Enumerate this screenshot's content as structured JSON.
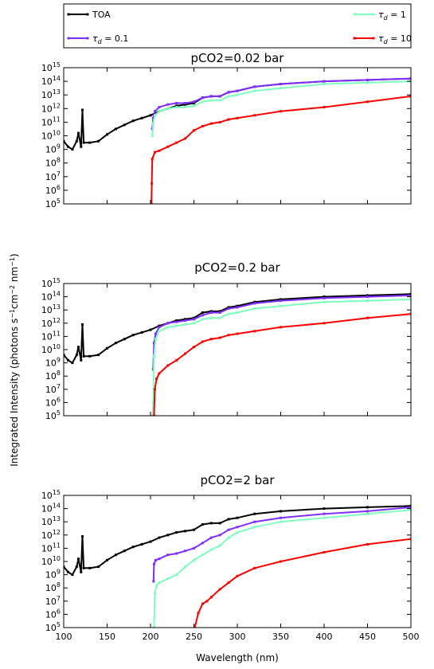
{
  "chart_data": {
    "type": "line",
    "xlabel": "Wavelength (nm)",
    "ylabel": "Integrated Intensity (photons s$^{-1}$cm$^{-2}$ nm$^{-1}$)",
    "ylabel_parts": {
      "main": "Integrated Intensity (photons s",
      "sup1": "−1",
      "mid": "cm",
      "sup2": "−2",
      "end1": " nm",
      "sup3": "−1",
      "end2": ")"
    },
    "xlim": [
      100,
      500
    ],
    "ylim_log10": [
      5,
      15
    ],
    "y_scale": "log",
    "xticks": [
      "100",
      "150",
      "200",
      "250",
      "300",
      "350",
      "400",
      "450",
      "500"
    ],
    "yticks_exponents": [
      "5",
      "6",
      "7",
      "8",
      "9",
      "10",
      "11",
      "12",
      "13",
      "14",
      "15"
    ],
    "legend": {
      "placement": "top, above panels",
      "entries": [
        {
          "label": "TOA",
          "color": "#000000"
        },
        {
          "label_base": "τ",
          "label_sub": "d",
          "label_rest": " = 0.1",
          "color": "#7f2fff"
        },
        {
          "label_base": "τ",
          "label_sub": "d",
          "label_rest": " = 1",
          "color": "#7fffbf"
        },
        {
          "label_base": "τ",
          "label_sub": "d",
          "label_rest": " = 10",
          "color": "#ff0000"
        }
      ]
    },
    "panels": [
      {
        "title": "pCO2=0.02 bar",
        "series": [
          {
            "name": "TOA",
            "color": "#000000",
            "x": [
              100,
              105,
              110,
              115,
              117,
              120,
              121.6,
              123,
              130,
              140,
              150,
              160,
              170,
              180,
              190,
              200,
              210,
              220,
              230,
              240,
              250,
              260,
              270,
              280,
              290,
              300,
              320,
              350,
              400,
              450,
              500
            ],
            "log10y": [
              9.6,
              9.2,
              9.0,
              9.6,
              10.2,
              9.2,
              11.9,
              9.5,
              9.5,
              9.6,
              10.1,
              10.5,
              10.8,
              11.1,
              11.3,
              11.5,
              11.8,
              12.0,
              12.2,
              12.3,
              12.4,
              12.8,
              12.9,
              12.9,
              13.2,
              13.3,
              13.6,
              13.8,
              14.0,
              14.1,
              14.2
            ]
          },
          {
            "name": "τd = 0.1",
            "color": "#7f2fff",
            "x": [
              202,
              203,
              205,
              210,
              220,
              230,
              240,
              250,
              260,
              270,
              280,
              290,
              300,
              320,
              350,
              400,
              450,
              500
            ],
            "log10y": [
              10.5,
              11.3,
              11.8,
              12.1,
              12.3,
              12.4,
              12.4,
              12.5,
              12.8,
              12.9,
              12.9,
              13.2,
              13.3,
              13.6,
              13.8,
              14.0,
              14.1,
              14.2
            ]
          },
          {
            "name": "τd = 1",
            "color": "#7fffbf",
            "x": [
              202,
              203,
              205,
              210,
              220,
              230,
              240,
              250,
              260,
              270,
              280,
              290,
              300,
              320,
              350,
              400,
              450,
              500
            ],
            "log10y": [
              10.0,
              10.9,
              11.5,
              11.8,
              12.0,
              12.1,
              12.1,
              12.2,
              12.5,
              12.6,
              12.6,
              12.9,
              13.0,
              13.3,
              13.5,
              13.8,
              13.9,
              14.0
            ]
          },
          {
            "name": "τd = 10",
            "color": "#ff0000",
            "x": [
              201,
              201.5,
              202,
              205,
              210,
              220,
              230,
              240,
              250,
              260,
              270,
              280,
              290,
              300,
              320,
              350,
              400,
              450,
              500
            ],
            "log10y": [
              5.0,
              6.5,
              8.3,
              8.8,
              8.9,
              9.2,
              9.5,
              9.8,
              10.4,
              10.7,
              10.9,
              11.0,
              11.2,
              11.3,
              11.5,
              11.8,
              12.1,
              12.5,
              12.9
            ]
          }
        ]
      },
      {
        "title": "pCO2=0.2 bar",
        "series": [
          {
            "name": "TOA",
            "color": "#000000",
            "x": [
              100,
              105,
              110,
              115,
              117,
              120,
              121.6,
              123,
              130,
              140,
              150,
              160,
              170,
              180,
              190,
              200,
              210,
              220,
              230,
              240,
              250,
              260,
              270,
              280,
              290,
              300,
              320,
              350,
              400,
              450,
              500
            ],
            "log10y": [
              9.6,
              9.2,
              9.0,
              9.6,
              10.2,
              9.2,
              11.9,
              9.5,
              9.5,
              9.6,
              10.1,
              10.5,
              10.8,
              11.1,
              11.3,
              11.5,
              11.8,
              12.0,
              12.2,
              12.3,
              12.4,
              12.8,
              12.9,
              12.9,
              13.2,
              13.3,
              13.6,
              13.8,
              14.0,
              14.1,
              14.2
            ]
          },
          {
            "name": "τd = 0.1",
            "color": "#7f2fff",
            "x": [
              203,
              204,
              206,
              210,
              220,
              230,
              240,
              250,
              260,
              270,
              280,
              290,
              300,
              320,
              350,
              400,
              450,
              500
            ],
            "log10y": [
              8.5,
              10.5,
              11.2,
              11.7,
              12.0,
              12.1,
              12.2,
              12.3,
              12.6,
              12.8,
              12.8,
              13.1,
              13.2,
              13.5,
              13.7,
              13.9,
              14.0,
              14.1
            ]
          },
          {
            "name": "τd = 1",
            "color": "#7fffbf",
            "x": [
              202.5,
              203,
              204,
              206,
              210,
              220,
              230,
              240,
              250,
              260,
              270,
              280,
              290,
              300,
              320,
              350,
              400,
              450,
              500
            ],
            "log10y": [
              5.0,
              6.0,
              9.5,
              10.8,
              11.4,
              11.7,
              11.8,
              11.9,
              12.0,
              12.3,
              12.4,
              12.4,
              12.7,
              12.8,
              13.1,
              13.3,
              13.6,
              13.7,
              13.8
            ]
          },
          {
            "name": "τd = 10",
            "color": "#ff0000",
            "x": [
              204,
              205,
              207,
              210,
              220,
              230,
              240,
              250,
              260,
              270,
              280,
              290,
              300,
              320,
              350,
              400,
              450,
              500
            ],
            "log10y": [
              5.0,
              7.0,
              7.8,
              8.2,
              8.8,
              9.2,
              9.7,
              10.2,
              10.6,
              10.8,
              10.9,
              11.1,
              11.2,
              11.4,
              11.7,
              12.0,
              12.4,
              12.7
            ]
          }
        ]
      },
      {
        "title": "pCO2=2 bar",
        "series": [
          {
            "name": "TOA",
            "color": "#000000",
            "x": [
              100,
              105,
              110,
              115,
              117,
              120,
              121.6,
              123,
              130,
              140,
              150,
              160,
              170,
              180,
              190,
              200,
              210,
              220,
              230,
              240,
              250,
              260,
              270,
              280,
              290,
              300,
              320,
              350,
              400,
              450,
              500
            ],
            "log10y": [
              9.6,
              9.2,
              9.0,
              9.6,
              10.2,
              9.2,
              11.9,
              9.5,
              9.5,
              9.6,
              10.1,
              10.5,
              10.8,
              11.1,
              11.3,
              11.5,
              11.8,
              12.0,
              12.2,
              12.3,
              12.4,
              12.8,
              12.9,
              12.9,
              13.2,
              13.3,
              13.6,
              13.8,
              14.0,
              14.1,
              14.2
            ]
          },
          {
            "name": "τd = 0.1",
            "color": "#7f2fff",
            "x": [
              203.5,
              204,
              206,
              210,
              220,
              230,
              240,
              250,
              260,
              270,
              280,
              290,
              300,
              320,
              350,
              400,
              450,
              500
            ],
            "log10y": [
              8.5,
              9.8,
              10.1,
              10.2,
              10.5,
              10.6,
              10.8,
              11.0,
              11.4,
              11.8,
              12.0,
              12.4,
              12.6,
              13.0,
              13.3,
              13.6,
              13.8,
              14.1
            ]
          },
          {
            "name": "τd = 1",
            "color": "#7fffbf",
            "x": [
              204,
              205,
              207,
              210,
              220,
              230,
              240,
              250,
              260,
              270,
              280,
              290,
              300,
              320,
              350,
              400,
              450,
              500
            ],
            "log10y": [
              5.0,
              7.6,
              8.2,
              8.4,
              8.7,
              9.0,
              9.6,
              10.1,
              10.5,
              10.9,
              11.2,
              11.8,
              12.2,
              12.6,
              13.0,
              13.3,
              13.6,
              13.9
            ]
          },
          {
            "name": "τd = 10",
            "color": "#ff0000",
            "x": [
              251,
              255,
              260,
              265,
              270,
              280,
              290,
              300,
              320,
              350,
              400,
              450,
              500
            ],
            "log10y": [
              5.0,
              6.1,
              6.8,
              7.0,
              7.3,
              7.9,
              8.4,
              8.9,
              9.5,
              10.0,
              10.7,
              11.3,
              11.7
            ]
          }
        ]
      }
    ]
  }
}
